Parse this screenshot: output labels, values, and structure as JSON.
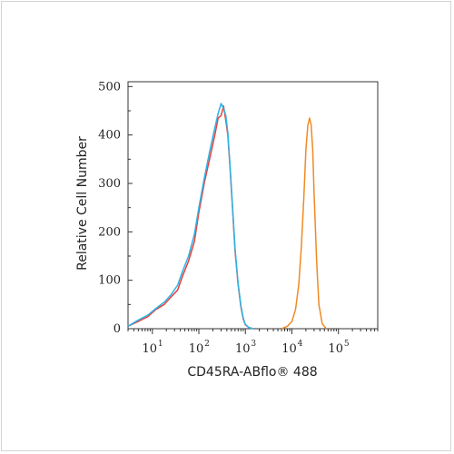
{
  "chart_data": {
    "type": "line",
    "title": "",
    "xlabel": "CD45RA-ABflo® 488",
    "ylabel": "Relative Cell Number",
    "x_scale": "log",
    "xlim": [
      3,
      700000
    ],
    "ylim": [
      0,
      510
    ],
    "x_ticks": [
      {
        "value": 10,
        "base": "10",
        "exp": "1"
      },
      {
        "value": 100,
        "base": "10",
        "exp": "2"
      },
      {
        "value": 1000,
        "base": "10",
        "exp": "3"
      },
      {
        "value": 10000,
        "base": "10",
        "exp": "4"
      },
      {
        "value": 100000,
        "base": "10",
        "exp": "5"
      }
    ],
    "y_ticks": [
      {
        "value": 0,
        "label": "0"
      },
      {
        "value": 100,
        "label": "100"
      },
      {
        "value": 200,
        "label": "200"
      },
      {
        "value": 300,
        "label": "300"
      },
      {
        "value": 400,
        "label": "400"
      },
      {
        "value": 500,
        "label": "500"
      }
    ],
    "grid": false,
    "series": [
      {
        "color": "#e8413c",
        "x": [
          3,
          5,
          8,
          12,
          18,
          25,
          35,
          45,
          60,
          80,
          100,
          130,
          170,
          220,
          260,
          300,
          340,
          380,
          420,
          470,
          520,
          600,
          700,
          800,
          900,
          1000,
          1200,
          1500
        ],
        "y": [
          5,
          15,
          25,
          40,
          50,
          65,
          80,
          110,
          140,
          180,
          240,
          300,
          350,
          400,
          435,
          440,
          460,
          430,
          400,
          330,
          260,
          160,
          90,
          45,
          20,
          8,
          2,
          0
        ]
      },
      {
        "color": "#2bb3e6",
        "x": [
          3,
          5,
          8,
          12,
          18,
          25,
          35,
          45,
          60,
          80,
          100,
          130,
          170,
          220,
          260,
          300,
          340,
          380,
          420,
          470,
          520,
          600,
          700,
          800,
          900,
          1000,
          1200,
          1500
        ],
        "y": [
          5,
          18,
          28,
          42,
          55,
          70,
          90,
          120,
          150,
          195,
          250,
          310,
          365,
          415,
          445,
          465,
          455,
          440,
          405,
          335,
          265,
          165,
          92,
          48,
          22,
          9,
          2,
          0
        ]
      },
      {
        "color": "#f08a24",
        "x": [
          6000,
          8000,
          10000,
          12000,
          14000,
          16000,
          18000,
          20000,
          22000,
          24000,
          26000,
          28000,
          30000,
          34000,
          38000,
          45000,
          55000
        ],
        "y": [
          0,
          5,
          15,
          40,
          90,
          170,
          270,
          370,
          420,
          435,
          420,
          370,
          280,
          140,
          50,
          10,
          0
        ]
      }
    ]
  }
}
